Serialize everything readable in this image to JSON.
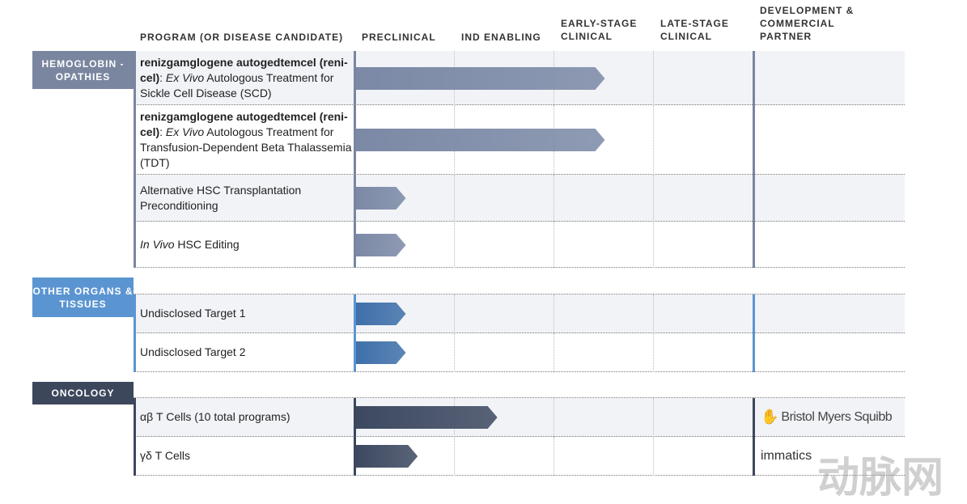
{
  "headers": {
    "program": "PROGRAM (OR DISEASE CANDIDATE)",
    "stages": [
      "PRECLINICAL",
      "IND ENABLING",
      "EARLY-STAGE CLINICAL",
      "LATE-STAGE CLINICAL"
    ],
    "partner": "DEVELOPMENT & COMMERCIAL PARTNER"
  },
  "sections": [
    {
      "label": "HEMOGLOBIN -OPATHIES",
      "color": "#7a86a0",
      "arrow_color": "#7b89a6",
      "rows": [
        {
          "bold": "renizgamglogene autogedtemcel (reni-cel)",
          "sep": ": ",
          "italic": "Ex Vivo",
          "rest": " Autologous Treatment for Sickle Cell Disease (SCD)",
          "progress_stages": 2.5
        },
        {
          "bold": "renizgamglogene autogedtemcel (reni-cel)",
          "sep": ": ",
          "italic": "Ex Vivo",
          "rest": " Autologous Treatment for Transfusion-Dependent Beta Thalassemia (TDT)",
          "progress_stages": 2.5
        },
        {
          "bold": "",
          "sep": "",
          "italic": "",
          "rest": "Alternative HSC Transplantation Preconditioning",
          "progress_stages": 0.5
        },
        {
          "bold": "",
          "sep": "",
          "italic": "In Vivo",
          "rest": " HSC Editing",
          "progress_stages": 0.5
        }
      ]
    },
    {
      "label": "OTHER ORGANS & TISSUES",
      "color": "#5b95d1",
      "arrow_color": "#3f70a9",
      "rows": [
        {
          "bold": "",
          "sep": "",
          "italic": "",
          "rest": "Undisclosed Target 1",
          "progress_stages": 0.5
        },
        {
          "bold": "",
          "sep": "",
          "italic": "",
          "rest": "Undisclosed Target 2",
          "progress_stages": 0.5
        }
      ]
    },
    {
      "label": "ONCOLOGY",
      "color": "#3c475c",
      "arrow_color": "#3d4961",
      "rows": [
        {
          "bold": "",
          "sep": "",
          "italic": "",
          "rest": "αβ T Cells (10 total programs)",
          "progress_stages": 1.42,
          "partner": "Bristol Myers Squibb",
          "partner_color": "#be2bbb"
        },
        {
          "bold": "",
          "sep": "",
          "italic": "",
          "rest": "γδ T Cells",
          "progress_stages": 0.62,
          "partner": "immatics",
          "partner_color": "#333333"
        }
      ]
    }
  ],
  "watermark": "动脉网"
}
